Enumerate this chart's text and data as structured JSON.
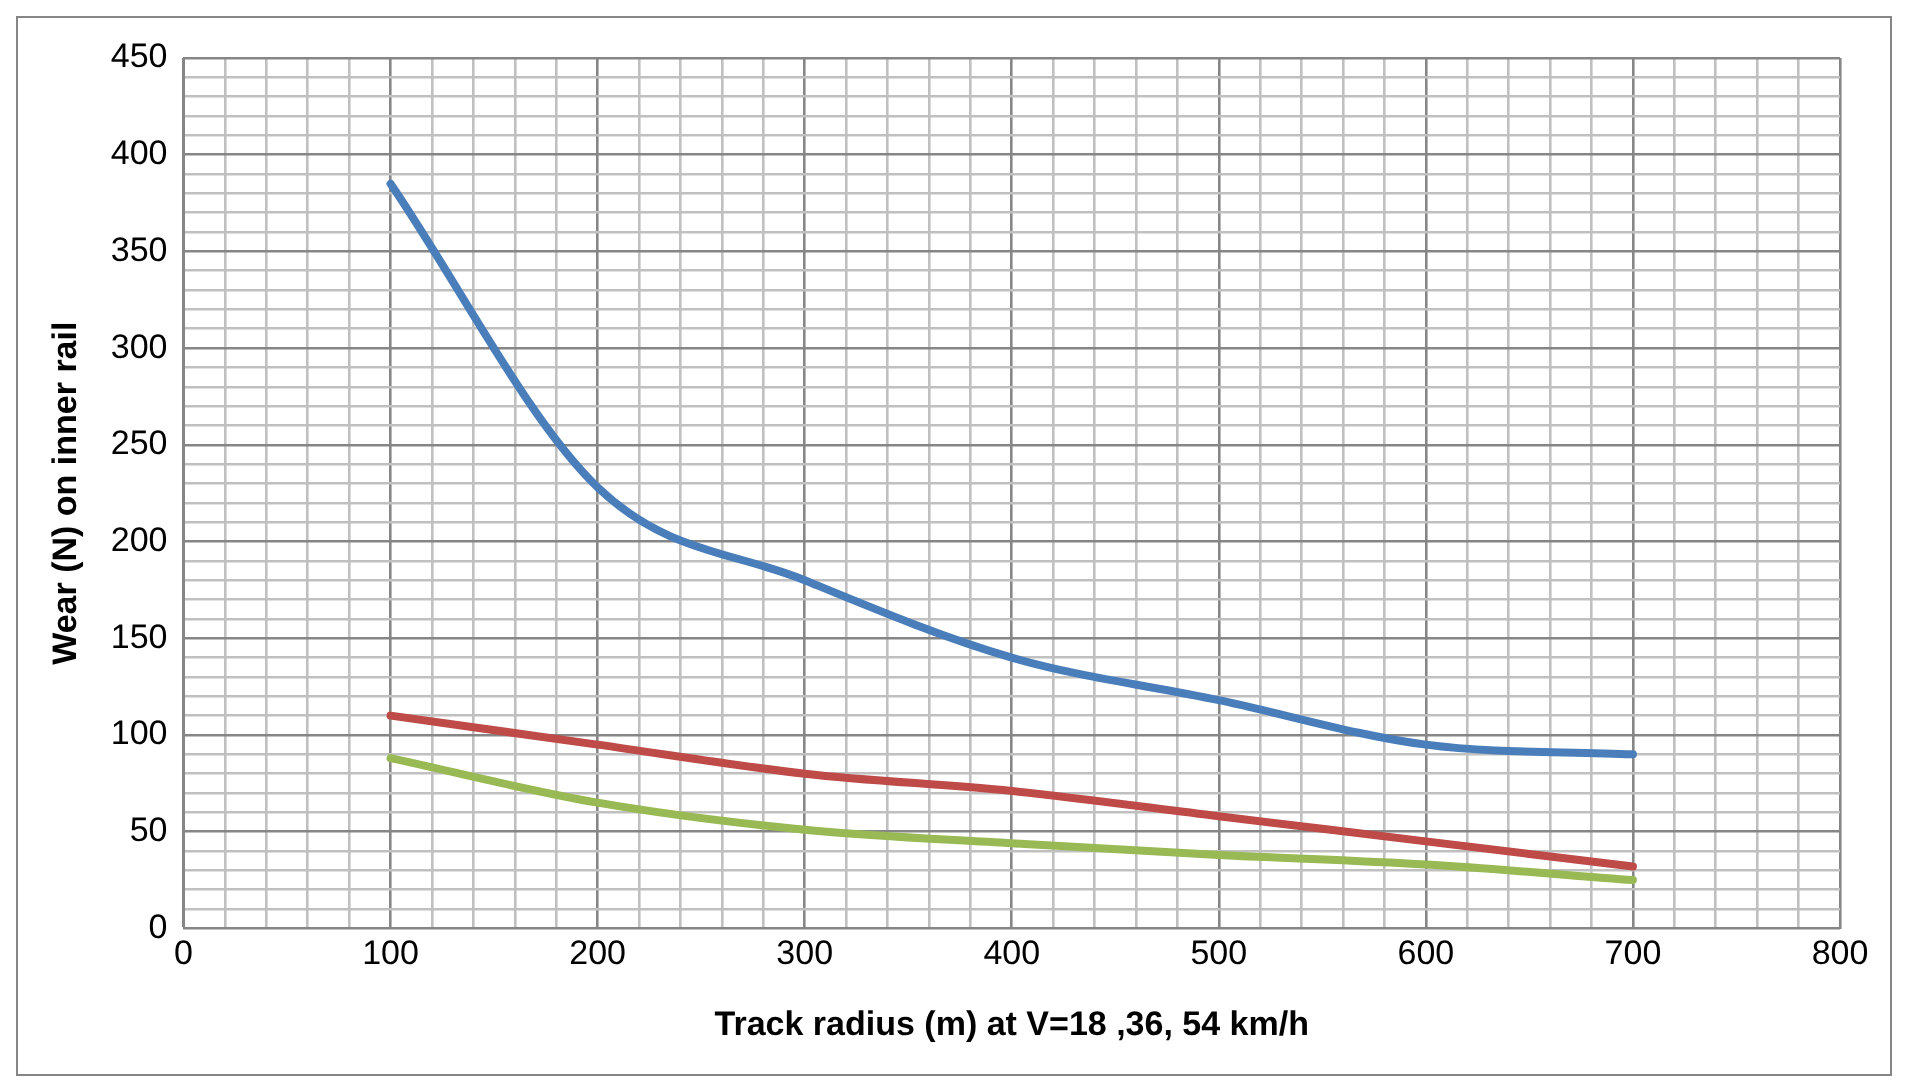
{
  "chart_data": {
    "type": "line",
    "xlabel": "Track radius (m) at V=18 ,36, 54 km/h",
    "ylabel": "Wear (N) on inner rail",
    "x": [
      100,
      200,
      300,
      400,
      500,
      600,
      700
    ],
    "series": [
      {
        "color": "#4a7ebb",
        "values": [
          385,
          228,
          180,
          140,
          118,
          95,
          90
        ]
      },
      {
        "color": "#be4b48",
        "values": [
          110,
          95,
          80,
          71,
          58,
          45,
          32
        ]
      },
      {
        "color": "#98b954",
        "values": [
          88,
          65,
          51,
          44,
          38,
          33,
          25
        ]
      }
    ],
    "xlim": [
      0,
      800
    ],
    "xticks": [
      0,
      {
        "value": 20,
        "label": null
      },
      {
        "value": 40,
        "label": null
      },
      {
        "value": 60,
        "label": null
      },
      {
        "value": 80,
        "label": null
      },
      100,
      {
        "value": 120,
        "label": null
      },
      {
        "value": 140,
        "label": null
      },
      {
        "value": 160,
        "label": null
      },
      {
        "value": 180,
        "label": null
      },
      200,
      {
        "value": 220,
        "label": null
      },
      {
        "value": 240,
        "label": null
      },
      {
        "value": 260,
        "label": null
      },
      {
        "value": 280,
        "label": null
      },
      300,
      {
        "value": 320,
        "label": null
      },
      {
        "value": 340,
        "label": null
      },
      {
        "value": 360,
        "label": null
      },
      {
        "value": 380,
        "label": null
      },
      400,
      {
        "value": 420,
        "label": null
      },
      {
        "value": 440,
        "label": null
      },
      {
        "value": 460,
        "label": null
      },
      {
        "value": 480,
        "label": null
      },
      500,
      {
        "value": 520,
        "label": null
      },
      {
        "value": 540,
        "label": null
      },
      {
        "value": 560,
        "label": null
      },
      {
        "value": 580,
        "label": null
      },
      600,
      {
        "value": 620,
        "label": null
      },
      {
        "value": 640,
        "label": null
      },
      {
        "value": 660,
        "label": null
      },
      {
        "value": 680,
        "label": null
      },
      700,
      {
        "value": 720,
        "label": null
      },
      {
        "value": 740,
        "label": null
      },
      {
        "value": 760,
        "label": null
      },
      {
        "value": 780,
        "label": null
      },
      800
    ],
    "ylim": [
      0,
      450
    ],
    "yticks": [
      0,
      {
        "value": 10,
        "label": null
      },
      {
        "value": 20,
        "label": null
      },
      {
        "value": 30,
        "label": null
      },
      {
        "value": 40,
        "label": null
      },
      50,
      {
        "value": 60,
        "label": null
      },
      {
        "value": 70,
        "label": null
      },
      {
        "value": 80,
        "label": null
      },
      {
        "value": 90,
        "label": null
      },
      100,
      {
        "value": 110,
        "label": null
      },
      {
        "value": 120,
        "label": null
      },
      {
        "value": 130,
        "label": null
      },
      {
        "value": 140,
        "label": null
      },
      150,
      {
        "value": 160,
        "label": null
      },
      {
        "value": 170,
        "label": null
      },
      {
        "value": 180,
        "label": null
      },
      {
        "value": 190,
        "label": null
      },
      200,
      {
        "value": 210,
        "label": null
      },
      {
        "value": 220,
        "label": null
      },
      {
        "value": 230,
        "label": null
      },
      {
        "value": 240,
        "label": null
      },
      250,
      {
        "value": 260,
        "label": null
      },
      {
        "value": 270,
        "label": null
      },
      {
        "value": 280,
        "label": null
      },
      {
        "value": 290,
        "label": null
      },
      300,
      {
        "value": 310,
        "label": null
      },
      {
        "value": 320,
        "label": null
      },
      {
        "value": 330,
        "label": null
      },
      {
        "value": 340,
        "label": null
      },
      350,
      {
        "value": 360,
        "label": null
      },
      {
        "value": 370,
        "label": null
      },
      {
        "value": 380,
        "label": null
      },
      {
        "value": 390,
        "label": null
      },
      400,
      {
        "value": 410,
        "label": null
      },
      {
        "value": 420,
        "label": null
      },
      {
        "value": 430,
        "label": null
      },
      {
        "value": 440,
        "label": null
      },
      450
    ],
    "grid": true,
    "marker": "none",
    "line_style": "solid"
  }
}
